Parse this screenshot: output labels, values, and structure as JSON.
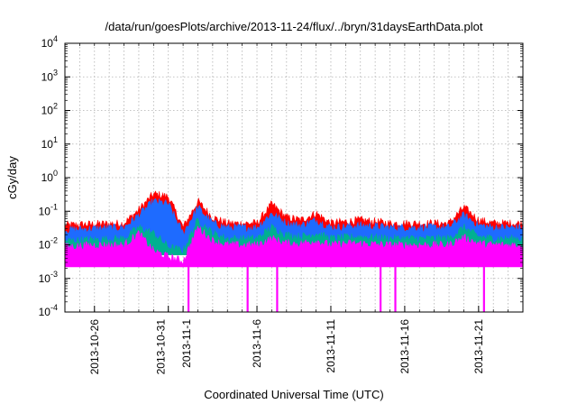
{
  "chart_data": {
    "type": "area",
    "title": "/data/run/goesPlots/archive/2013-11-24/flux/../bryn/31daysEarthData.plot",
    "xlabel": "Coordinated Universal Time (UTC)",
    "ylabel": "cGy/day",
    "yscale": "log",
    "ylim": [
      0.0001,
      10000
    ],
    "y_ticks": [
      {
        "value": 0.0001,
        "base": "10",
        "exp": "-4"
      },
      {
        "value": 0.001,
        "base": "10",
        "exp": "-3"
      },
      {
        "value": 0.01,
        "base": "10",
        "exp": "-2"
      },
      {
        "value": 0.1,
        "base": "10",
        "exp": "-1"
      },
      {
        "value": 1,
        "base": "10",
        "exp": "0"
      },
      {
        "value": 10,
        "base": "10",
        "exp": "1"
      },
      {
        "value": 100,
        "base": "10",
        "exp": "2"
      },
      {
        "value": 1000,
        "base": "10",
        "exp": "3"
      },
      {
        "value": 10000,
        "base": "10",
        "exp": "4"
      }
    ],
    "xlim": [
      "2013-10-24",
      "2013-11-24"
    ],
    "x_ticks": [
      {
        "date": "2013-10-26",
        "label": "2013-10-26"
      },
      {
        "date": "2013-10-31",
        "label": "2013-10-31"
      },
      {
        "date": "2013-11-01",
        "label": "2013-11-1"
      },
      {
        "date": "2013-11-06",
        "label": "2013-11-6"
      },
      {
        "date": "2013-11-11",
        "label": "2013-11-11"
      },
      {
        "date": "2013-11-16",
        "label": "2013-11-16"
      },
      {
        "date": "2013-11-21",
        "label": "2013-11-21"
      }
    ],
    "grid": true,
    "series": [
      {
        "color": "#ff0000",
        "x": [
          "2013-10-24",
          "2013-10-26",
          "2013-10-28",
          "2013-10-29",
          "2013-10-30",
          "2013-10-31",
          "2013-11-01",
          "2013-11-02",
          "2013-11-03",
          "2013-11-04",
          "2013-11-06",
          "2013-11-07",
          "2013-11-08",
          "2013-11-09",
          "2013-11-10",
          "2013-11-11",
          "2013-11-12",
          "2013-11-13",
          "2013-11-15",
          "2013-11-17",
          "2013-11-19",
          "2013-11-20",
          "2013-11-21",
          "2013-11-22",
          "2013-11-24"
        ],
        "y": [
          0.035,
          0.038,
          0.04,
          0.1,
          0.3,
          0.25,
          0.03,
          0.18,
          0.06,
          0.04,
          0.04,
          0.15,
          0.06,
          0.05,
          0.08,
          0.04,
          0.045,
          0.05,
          0.04,
          0.04,
          0.04,
          0.12,
          0.05,
          0.04,
          0.04
        ]
      },
      {
        "color": "#1e6bff",
        "x": [
          "2013-10-24",
          "2013-10-26",
          "2013-10-28",
          "2013-10-29",
          "2013-10-30",
          "2013-10-31",
          "2013-11-01",
          "2013-11-02",
          "2013-11-03",
          "2013-11-04",
          "2013-11-06",
          "2013-11-07",
          "2013-11-08",
          "2013-11-09",
          "2013-11-10",
          "2013-11-11",
          "2013-11-12",
          "2013-11-13",
          "2013-11-15",
          "2013-11-17",
          "2013-11-19",
          "2013-11-20",
          "2013-11-21",
          "2013-11-22",
          "2013-11-24"
        ],
        "y": [
          0.025,
          0.028,
          0.03,
          0.07,
          0.18,
          0.15,
          0.02,
          0.12,
          0.04,
          0.03,
          0.03,
          0.08,
          0.04,
          0.035,
          0.05,
          0.03,
          0.032,
          0.035,
          0.03,
          0.03,
          0.03,
          0.07,
          0.035,
          0.03,
          0.03
        ]
      },
      {
        "color": "#00b090",
        "x": [
          "2013-10-24",
          "2013-10-26",
          "2013-10-28",
          "2013-10-29",
          "2013-10-30",
          "2013-10-31",
          "2013-11-01",
          "2013-11-02",
          "2013-11-03",
          "2013-11-04",
          "2013-11-06",
          "2013-11-07",
          "2013-11-08",
          "2013-11-09",
          "2013-11-10",
          "2013-11-11",
          "2013-11-12",
          "2013-11-13",
          "2013-11-15",
          "2013-11-17",
          "2013-11-19",
          "2013-11-20",
          "2013-11-21",
          "2013-11-22",
          "2013-11-24"
        ],
        "y": [
          0.012,
          0.013,
          0.014,
          0.03,
          0.02,
          0.008,
          0.006,
          0.05,
          0.02,
          0.014,
          0.014,
          0.03,
          0.018,
          0.016,
          0.02,
          0.014,
          0.015,
          0.016,
          0.014,
          0.014,
          0.014,
          0.03,
          0.016,
          0.014,
          0.014
        ]
      },
      {
        "color": "#ff00ff",
        "x": [
          "2013-10-24",
          "2013-10-26",
          "2013-10-28",
          "2013-10-29",
          "2013-10-30",
          "2013-10-31",
          "2013-11-01",
          "2013-11-02",
          "2013-11-03",
          "2013-11-04",
          "2013-11-06",
          "2013-11-07",
          "2013-11-08",
          "2013-11-09",
          "2013-11-10",
          "2013-11-11",
          "2013-11-12",
          "2013-11-13",
          "2013-11-15",
          "2013-11-17",
          "2013-11-19",
          "2013-11-20",
          "2013-11-21",
          "2013-11-22",
          "2013-11-24"
        ],
        "y": [
          0.008,
          0.009,
          0.009,
          0.02,
          0.006,
          0.004,
          0.003,
          0.03,
          0.012,
          0.009,
          0.009,
          0.014,
          0.01,
          0.01,
          0.012,
          0.009,
          0.01,
          0.01,
          0.009,
          0.009,
          0.009,
          0.015,
          0.01,
          0.009,
          0.009
        ],
        "dropouts": [
          "2013-11-01",
          "2013-11-05",
          "2013-11-07",
          "2013-11-14",
          "2013-11-15",
          "2013-11-21"
        ]
      }
    ]
  }
}
